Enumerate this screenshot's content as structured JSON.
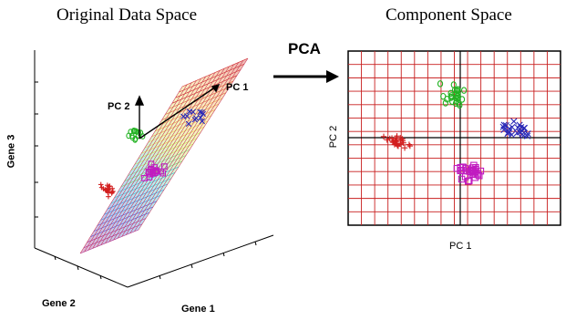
{
  "left_panel": {
    "title": "Original Data Space",
    "axis_labels": {
      "x": "Gene 1",
      "y": "Gene 2",
      "z": "Gene 3"
    },
    "pc_labels": {
      "pc1": "PC 1",
      "pc2": "PC 2"
    }
  },
  "arrow_label": "PCA",
  "right_panel": {
    "title": "Component Space",
    "xlabel": "PC 1",
    "ylabel": "PC 2"
  },
  "clusters": [
    {
      "name": "red",
      "color": "#d21e1e",
      "marker": "plus"
    },
    {
      "name": "green",
      "color": "#22b222",
      "marker": "circle"
    },
    {
      "name": "blue",
      "color": "#2a2ab8",
      "marker": "x"
    },
    {
      "name": "magenta",
      "color": "#c01cc0",
      "marker": "square"
    }
  ],
  "grid_color": "#c81e1e"
}
